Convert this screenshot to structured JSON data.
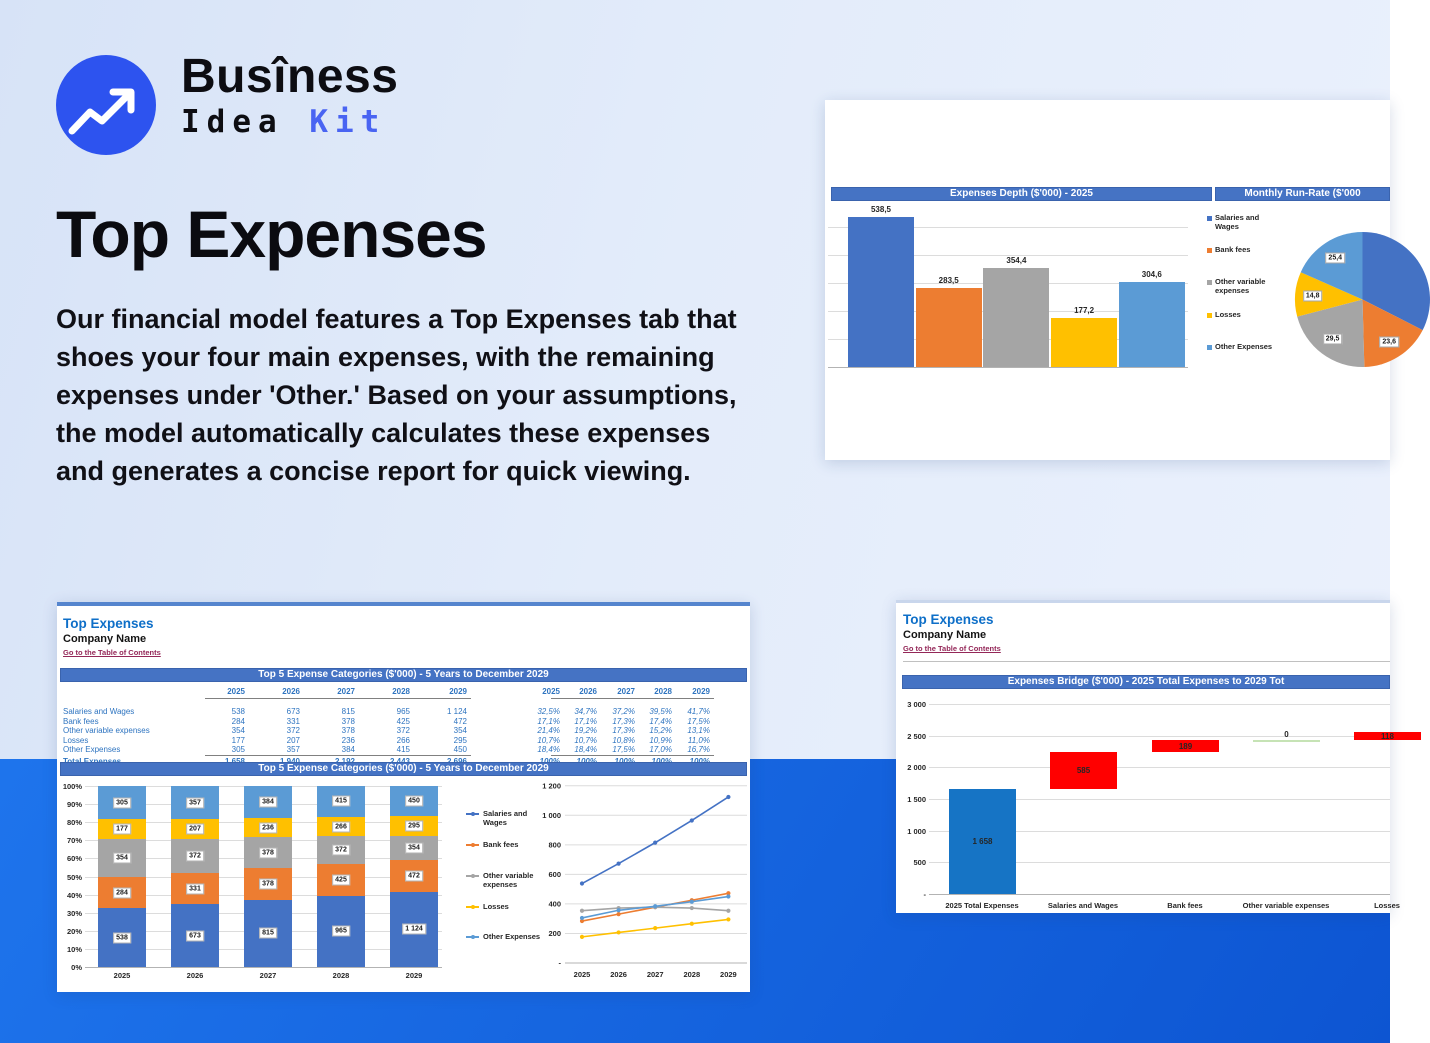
{
  "brand": {
    "line1": "Busîness",
    "line2_dark": "Idea ",
    "line2_accent": "Kit"
  },
  "hero": {
    "title": "Top Expenses",
    "description": "Our financial model features a Top Expenses tab that shoes your four main expenses, with the remaining expenses under 'Other.' Based on your assumptions, the model automatically calculates these expenses and generates a concise report for quick viewing."
  },
  "colors": {
    "series": [
      "#4472C4",
      "#ED7D31",
      "#A5A5A5",
      "#FFC000",
      "#5B9BD5"
    ],
    "header_bar": "#4573C4",
    "waterfall": {
      "total": "#1674C5",
      "increase": "#FF0000",
      "zero": "#C6E3B5"
    },
    "band_blue": "#1465E0",
    "sheet_title_blue": "#0E6FC8",
    "link_maroon": "#942758"
  },
  "top_card": {
    "left_header": "Expenses Depth ($'000) - 2025",
    "right_header": "Monthly Run-Rate ($'000"
  },
  "sheet": {
    "title": "Top Expenses",
    "subtitle": "Company Name",
    "link": "Go to the Table of Contents"
  },
  "table": {
    "title": "Top 5 Expense Categories ($'000) - 5 Years to December 2029",
    "years": [
      "2025",
      "2026",
      "2027",
      "2028",
      "2029"
    ],
    "rows": [
      {
        "label": "Salaries and Wages",
        "values": [
          "538",
          "673",
          "815",
          "965",
          "1 124"
        ],
        "pcts": [
          "32,5%",
          "34,7%",
          "37,2%",
          "39,5%",
          "41,7%"
        ]
      },
      {
        "label": "Bank fees",
        "values": [
          "284",
          "331",
          "378",
          "425",
          "472"
        ],
        "pcts": [
          "17,1%",
          "17,1%",
          "17,3%",
          "17,4%",
          "17,5%"
        ]
      },
      {
        "label": "Other variable expenses",
        "values": [
          "354",
          "372",
          "378",
          "372",
          "354"
        ],
        "pcts": [
          "21,4%",
          "19,2%",
          "17,3%",
          "15,2%",
          "13,1%"
        ]
      },
      {
        "label": "Losses",
        "values": [
          "177",
          "207",
          "236",
          "266",
          "295"
        ],
        "pcts": [
          "10,7%",
          "10,7%",
          "10,8%",
          "10,9%",
          "11,0%"
        ]
      },
      {
        "label": "Other Expenses",
        "values": [
          "305",
          "357",
          "384",
          "415",
          "450"
        ],
        "pcts": [
          "18,4%",
          "18,4%",
          "17,5%",
          "17,0%",
          "16,7%"
        ]
      }
    ],
    "total": {
      "label": "Total Expenses",
      "values": [
        "1 658",
        "1 940",
        "2 192",
        "2 443",
        "2 696"
      ],
      "pcts": [
        "100%",
        "100%",
        "100%",
        "100%",
        "100%"
      ]
    }
  },
  "bridge": {
    "title": "Expenses Bridge ($'000) - 2025 Total Expenses to 2029 Tot"
  },
  "chart_data": [
    {
      "id": "expenses-depth",
      "type": "bar",
      "title": "Expenses Depth ($'000) - 2025",
      "categories": [
        "Salaries and Wages",
        "Bank fees",
        "Other variable expenses",
        "Losses",
        "Other Expenses"
      ],
      "values": [
        538.5,
        283.5,
        354.4,
        177.2,
        304.6
      ],
      "value_labels": [
        "538,5",
        "283,5",
        "354,4",
        "177,2",
        "304,6"
      ],
      "ylim": [
        0,
        500
      ],
      "grid_step": 100,
      "legend_position": "right"
    },
    {
      "id": "monthly-run-rate",
      "type": "pie",
      "title": "Monthly Run-Rate ($'000",
      "slices": [
        {
          "name": "Salaries and Wages",
          "value": 44.9,
          "label": ""
        },
        {
          "name": "Bank fees",
          "value": 23.6,
          "label": "23,6"
        },
        {
          "name": "Other variable expenses",
          "value": 29.5,
          "label": "29,5"
        },
        {
          "name": "Losses",
          "value": 14.8,
          "label": "14,8"
        },
        {
          "name": "Other Expenses",
          "value": 25.4,
          "label": "25,4"
        }
      ]
    },
    {
      "id": "top5-stacked",
      "type": "stacked-bar",
      "title": "Top 5 Expense Categories ($'000) - 5 Years to December 2029",
      "categories": [
        "2025",
        "2026",
        "2027",
        "2028",
        "2029"
      ],
      "totals": [
        1658,
        1940,
        2192,
        2443,
        2696
      ],
      "y_ticks": [
        "0%",
        "10%",
        "20%",
        "30%",
        "40%",
        "50%",
        "60%",
        "70%",
        "80%",
        "90%",
        "100%"
      ],
      "series": [
        {
          "name": "Salaries and Wages",
          "values": [
            538,
            673,
            815,
            965,
            1124
          ],
          "labels": [
            "538",
            "673",
            "815",
            "965",
            "1 124"
          ]
        },
        {
          "name": "Bank fees",
          "values": [
            284,
            331,
            378,
            425,
            472
          ],
          "labels": [
            "284",
            "331",
            "378",
            "425",
            "472"
          ]
        },
        {
          "name": "Other variable expenses",
          "values": [
            354,
            372,
            378,
            372,
            354
          ],
          "labels": [
            "354",
            "372",
            "378",
            "372",
            "354"
          ]
        },
        {
          "name": "Losses",
          "values": [
            177,
            207,
            236,
            266,
            295
          ],
          "labels": [
            "177",
            "207",
            "236",
            "266",
            "295"
          ]
        },
        {
          "name": "Other Expenses",
          "values": [
            305,
            357,
            384,
            415,
            450
          ],
          "labels": [
            "305",
            "357",
            "384",
            "415",
            "450"
          ]
        }
      ]
    },
    {
      "id": "top5-lines",
      "type": "line",
      "x": [
        "2025",
        "2026",
        "2027",
        "2028",
        "2029"
      ],
      "y_ticks": [
        "-",
        "200",
        "400",
        "600",
        "800",
        "1 000",
        "1 200"
      ],
      "ylim": [
        0,
        1200
      ],
      "series": [
        {
          "name": "Salaries and Wages",
          "values": [
            538,
            673,
            815,
            965,
            1124
          ]
        },
        {
          "name": "Bank fees",
          "values": [
            284,
            331,
            378,
            425,
            472
          ]
        },
        {
          "name": "Other variable expenses",
          "values": [
            354,
            372,
            378,
            372,
            354
          ]
        },
        {
          "name": "Losses",
          "values": [
            177,
            207,
            236,
            266,
            295
          ]
        },
        {
          "name": "Other Expenses",
          "values": [
            305,
            357,
            384,
            415,
            450
          ]
        }
      ]
    },
    {
      "id": "expenses-bridge",
      "type": "waterfall",
      "title": "Expenses Bridge ($'000) - 2025 Total Expenses to 2029 Tot",
      "y_ticks": [
        "-",
        "500",
        "1 000",
        "1 500",
        "2 000",
        "2 500",
        "3 000"
      ],
      "ylim": [
        0,
        3000
      ],
      "categories": [
        "2025 Total Expenses",
        "Salaries and Wages",
        "Bank fees",
        "Other variable expenses",
        "Losses"
      ],
      "bars": [
        {
          "category": "2025 Total Expenses",
          "label": "1 658",
          "start": 0,
          "end": 1658,
          "color": "total"
        },
        {
          "category": "Salaries and Wages",
          "label": "585",
          "start": 1658,
          "end": 2243,
          "color": "increase"
        },
        {
          "category": "Bank fees",
          "label": "189",
          "start": 2243,
          "end": 2432,
          "color": "increase"
        },
        {
          "category": "Other variable expenses",
          "label": "0",
          "start": 2432,
          "end": 2432,
          "color": "zero"
        },
        {
          "category": "Losses",
          "label": "118",
          "start": 2432,
          "end": 2550,
          "color": "increase"
        }
      ]
    }
  ]
}
